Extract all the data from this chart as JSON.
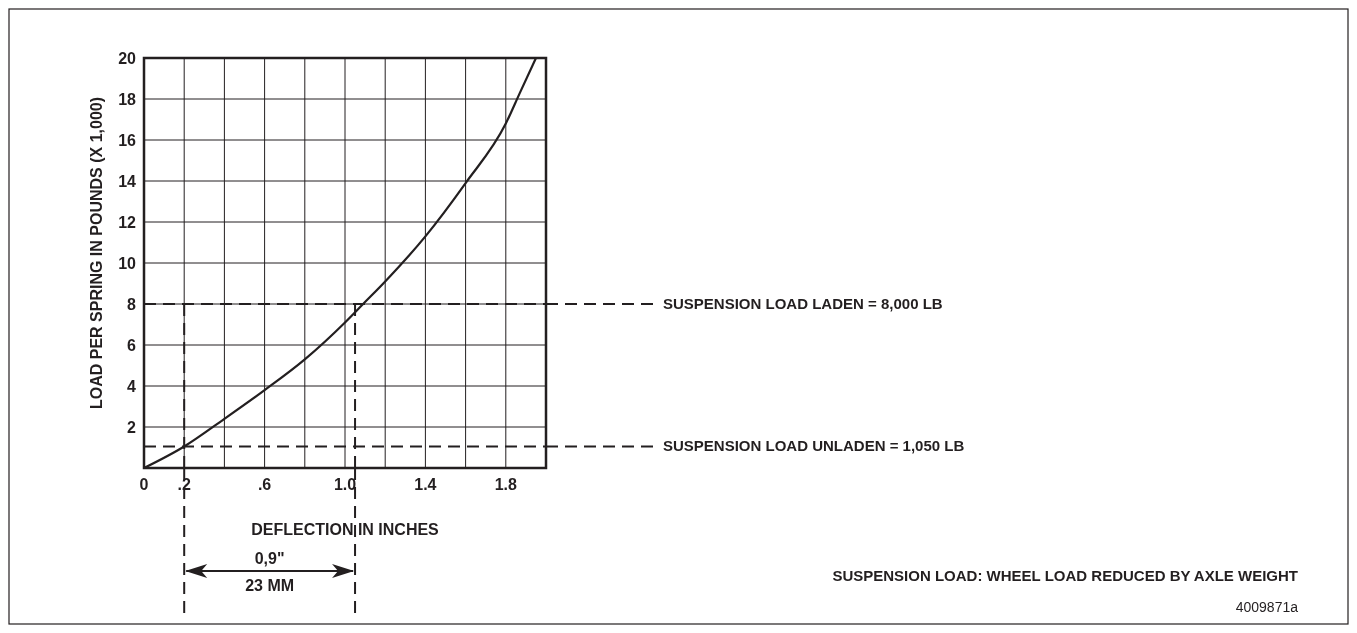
{
  "chart_data": {
    "type": "line",
    "xlabel": "DEFLECTION IN INCHES",
    "ylabel": "LOAD PER SPRING IN POUNDS (X 1,000)",
    "x": [
      0,
      0.2,
      0.4,
      0.6,
      0.8,
      1.0,
      1.09,
      1.2,
      1.4,
      1.6,
      1.8,
      1.87,
      1.95
    ],
    "series": [
      {
        "color": "#231f20",
        "values": [
          0,
          1.05,
          2.4,
          3.8,
          5.3,
          7.1,
          8,
          9.1,
          11.3,
          13.9,
          16.8,
          18.3,
          20
        ]
      }
    ],
    "xlim": [
      0,
      2.0
    ],
    "xticks": [
      0,
      {
        "value": 0.2,
        "label": ".2"
      },
      {
        "value": 0.4,
        "label": null
      },
      {
        "value": 0.6,
        "label": ".6"
      },
      {
        "value": 0.8,
        "label": null
      },
      {
        "value": 1.0,
        "label": "1.0"
      },
      {
        "value": 1.2,
        "label": null
      },
      {
        "value": 1.4,
        "label": "1.4"
      },
      {
        "value": 1.6,
        "label": null
      },
      {
        "value": 1.8,
        "label": "1.8"
      },
      {
        "value": 2.0,
        "label": null
      }
    ],
    "ylim": [
      0,
      20
    ],
    "yticks": [
      {
        "value": 0,
        "label": null
      },
      2,
      4,
      6,
      8,
      10,
      12,
      14,
      16,
      18,
      20
    ],
    "grid": true,
    "line_style": "solid",
    "marker": "none",
    "ref_lines": [
      {
        "axis": "y",
        "value": 8,
        "label": "SUSPENSION LOAD LADEN = 8,000 LB",
        "line_style": "dashed"
      },
      {
        "axis": "y",
        "value": 1.05,
        "label": "SUSPENSION LOAD UNLADEN = 1,050 LB",
        "line_style": "dashed"
      },
      {
        "axis": "x",
        "value": 0.2,
        "label": null,
        "line_style": "dashed"
      },
      {
        "axis": "x",
        "value": 1.05,
        "label": null,
        "line_style": "dashed"
      }
    ],
    "annotations": [
      "0,9\"",
      "23 MM",
      "SUSPENSION LOAD: WHEEL LOAD REDUCED BY AXLE WEIGHT",
      "4009871a"
    ]
  }
}
